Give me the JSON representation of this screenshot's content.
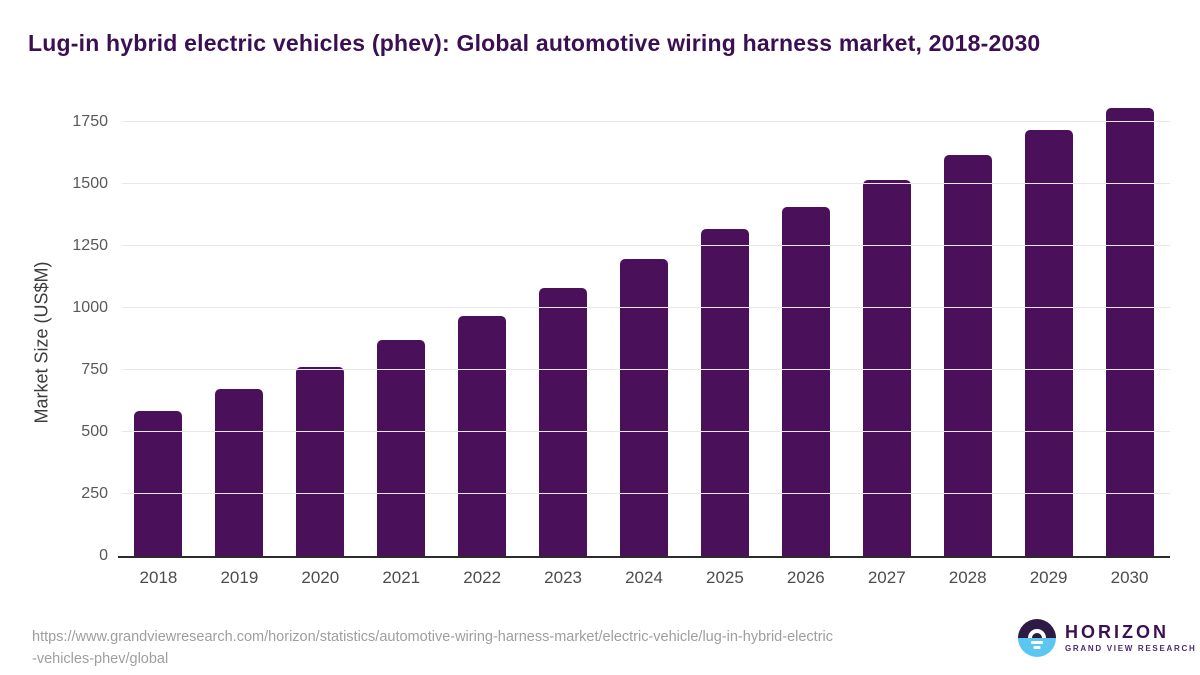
{
  "chart_data": {
    "type": "bar",
    "title": "Lug-in hybrid electric vehicles (phev): Global automotive wiring harness market, 2018-2030",
    "ylabel": "Market Size (US$M)",
    "xlabel": "",
    "categories": [
      "2018",
      "2019",
      "2020",
      "2021",
      "2022",
      "2023",
      "2024",
      "2025",
      "2026",
      "2027",
      "2028",
      "2029",
      "2030"
    ],
    "values": [
      585,
      671,
      762,
      871,
      965,
      1079,
      1196,
      1316,
      1408,
      1514,
      1614,
      1715,
      1803
    ],
    "yticks": [
      0,
      250,
      500,
      750,
      1000,
      1250,
      1500,
      1750
    ],
    "ylim": [
      0,
      1810
    ],
    "grid": "horizontal",
    "legend": "none"
  },
  "colors": {
    "bar": "#4a1059",
    "title": "#3b1053",
    "gridline": "#e8e8e8",
    "axis_line": "#2b2b2b",
    "tick_text": "#595959",
    "xlabel_text": "#4d4d4d",
    "source_text": "#9e9e9e",
    "logo_purple": "#3a1152",
    "logo_blue": "#5bc6f0"
  },
  "footer": {
    "source_url_line1": "https://www.grandviewresearch.com/horizon/statistics/automotive-wiring-harness-market/electric-vehicle/lug-in-hybrid-electric",
    "source_url_line2": "-vehicles-phev/global",
    "logo_name": "HORIZON",
    "logo_tagline": "GRAND VIEW RESEARCH"
  }
}
